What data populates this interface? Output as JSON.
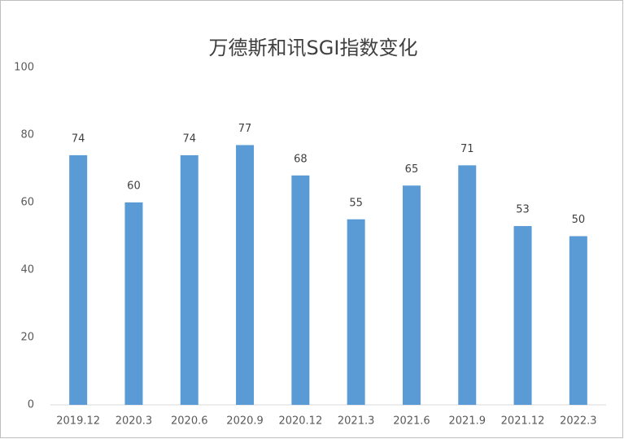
{
  "chart_data": {
    "type": "bar",
    "title": "万德斯和讯SGI指数变化",
    "categories": [
      "2019.12",
      "2020.3",
      "2020.6",
      "2020.9",
      "2020.12",
      "2021.3",
      "2021.6",
      "2021.9",
      "2021.12",
      "2022.3"
    ],
    "values": [
      74,
      60,
      74,
      77,
      68,
      55,
      65,
      71,
      53,
      50
    ],
    "color": "#5b9bd5",
    "ylim": [
      0,
      100
    ],
    "yticks": [
      0,
      20,
      40,
      60,
      80,
      100
    ],
    "grid": false
  }
}
